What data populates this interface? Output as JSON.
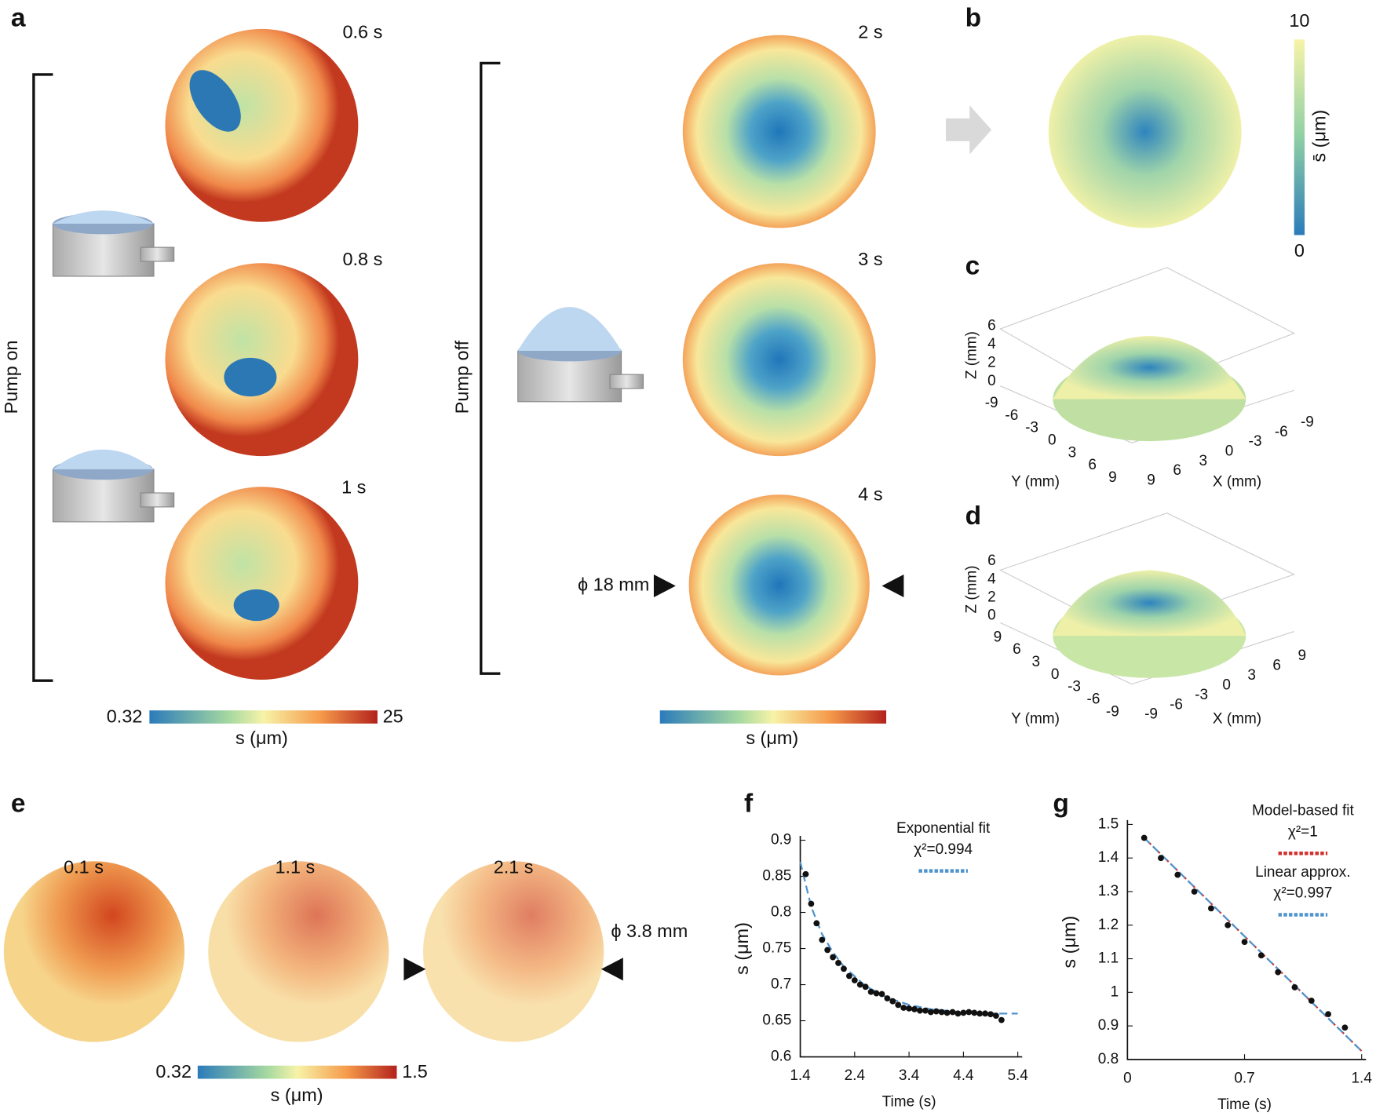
{
  "figure": {
    "panel_labels": [
      "a",
      "b",
      "c",
      "d",
      "e",
      "f",
      "g"
    ],
    "a": {
      "times_pump_on": [
        "0.6 s",
        "0.8 s",
        "1 s"
      ],
      "times_pump_off": [
        "2 s",
        "3 s",
        "4 s"
      ],
      "pump_on": "Pump on",
      "pump_off": "Pump off",
      "diameter": "ϕ 18 mm",
      "colorbar_min": "0.32",
      "colorbar_max": "25",
      "colorbar_label": "s (μm)",
      "colorbar_label_2": "s (μm)"
    },
    "b": {
      "colorbar_max": "10",
      "colorbar_min": "0",
      "colorbar_label": "s̄ (μm)"
    },
    "c": {
      "zticks": [
        0,
        2,
        4,
        6
      ],
      "yticks": [
        -9,
        -6,
        -3,
        0,
        3,
        6,
        9
      ],
      "xticks": [
        9,
        6,
        3,
        0,
        -3,
        -6,
        -9
      ],
      "zlabel": "Z (mm)",
      "ylabel": "Y (mm)",
      "xlabel": "X (mm)"
    },
    "d": {
      "zticks": [
        0,
        2,
        4,
        6
      ],
      "yticks": [
        9,
        6,
        3,
        0,
        -3,
        -6,
        -9
      ],
      "xticks": [
        -9,
        -6,
        -3,
        0,
        3,
        6,
        9
      ],
      "zlabel": "Z (mm)",
      "ylabel": "Y (mm)",
      "xlabel": "X (mm)"
    },
    "e": {
      "times": [
        "0.1 s",
        "1.1 s",
        "2.1 s"
      ],
      "diameter": "ϕ 3.8 mm",
      "colorbar_min": "0.32",
      "colorbar_max": "1.5",
      "colorbar_label": "s (μm)"
    }
  },
  "chart_data": [
    {
      "type": "scatter",
      "xlabel": "Time (s)",
      "ylabel": "s (μm)",
      "xlim": [
        1.4,
        5.4
      ],
      "ylim": [
        0.6,
        0.9
      ],
      "xticks": [
        1.4,
        2.4,
        3.4,
        4.4,
        5.4
      ],
      "yticks": [
        0.6,
        0.65,
        0.7,
        0.75,
        0.8,
        0.85,
        0.9
      ],
      "series": [
        {
          "name": "Exponential fit",
          "annotation": "χ²=0.994",
          "color": "#4f94cd",
          "style": "dashed",
          "x": [
            1.4,
            1.6,
            1.8,
            2.0,
            2.2,
            2.6,
            3.0,
            3.4,
            3.8,
            4.2,
            4.6,
            5.0,
            5.4
          ],
          "values": [
            0.87,
            0.808,
            0.77,
            0.745,
            0.725,
            0.698,
            0.682,
            0.672,
            0.666,
            0.663,
            0.661,
            0.66,
            0.66
          ]
        },
        {
          "color": "#111111",
          "style": "dots",
          "x": [
            1.5,
            1.6,
            1.7,
            1.8,
            1.9,
            2.0,
            2.1,
            2.2,
            2.3,
            2.4,
            2.5,
            2.6,
            2.7,
            2.8,
            2.9,
            3.0,
            3.1,
            3.2,
            3.3,
            3.4,
            3.5,
            3.6,
            3.7,
            3.8,
            3.9,
            4.0,
            4.1,
            4.2,
            4.3,
            4.4,
            4.5,
            4.6,
            4.7,
            4.8,
            4.9,
            5.0,
            5.1
          ],
          "values": [
            0.853,
            0.812,
            0.785,
            0.762,
            0.748,
            0.738,
            0.73,
            0.722,
            0.712,
            0.706,
            0.7,
            0.697,
            0.69,
            0.688,
            0.687,
            0.681,
            0.677,
            0.672,
            0.668,
            0.667,
            0.666,
            0.664,
            0.664,
            0.662,
            0.663,
            0.662,
            0.661,
            0.662,
            0.66,
            0.661,
            0.662,
            0.661,
            0.66,
            0.66,
            0.659,
            0.657,
            0.651
          ]
        }
      ]
    },
    {
      "type": "scatter",
      "xlabel": "Time (s)",
      "ylabel": "s (μm)",
      "xlim": [
        0,
        1.4
      ],
      "ylim": [
        0.8,
        1.5
      ],
      "xticks": [
        0,
        0.7,
        1.4
      ],
      "yticks": [
        0.8,
        0.9,
        1,
        1.1,
        1.2,
        1.3,
        1.4,
        1.5
      ],
      "series": [
        {
          "name": "Model-based fit",
          "annotation": "χ²=1",
          "color": "#d0312d",
          "style": "dotted",
          "x": [
            0.1,
            1.4
          ],
          "values": [
            1.46,
            0.825
          ]
        },
        {
          "name": "Linear approx.",
          "annotation": "χ²=0.997",
          "color": "#4f94cd",
          "style": "dashed",
          "x": [
            0.1,
            1.4
          ],
          "values": [
            1.46,
            0.825
          ]
        },
        {
          "color": "#111111",
          "style": "dots",
          "x": [
            0.1,
            0.2,
            0.3,
            0.4,
            0.5,
            0.6,
            0.7,
            0.8,
            0.9,
            1.0,
            1.1,
            1.2,
            1.3
          ],
          "values": [
            1.46,
            1.4,
            1.35,
            1.3,
            1.25,
            1.2,
            1.15,
            1.11,
            1.06,
            1.015,
            0.975,
            0.935,
            0.895
          ]
        }
      ]
    }
  ]
}
